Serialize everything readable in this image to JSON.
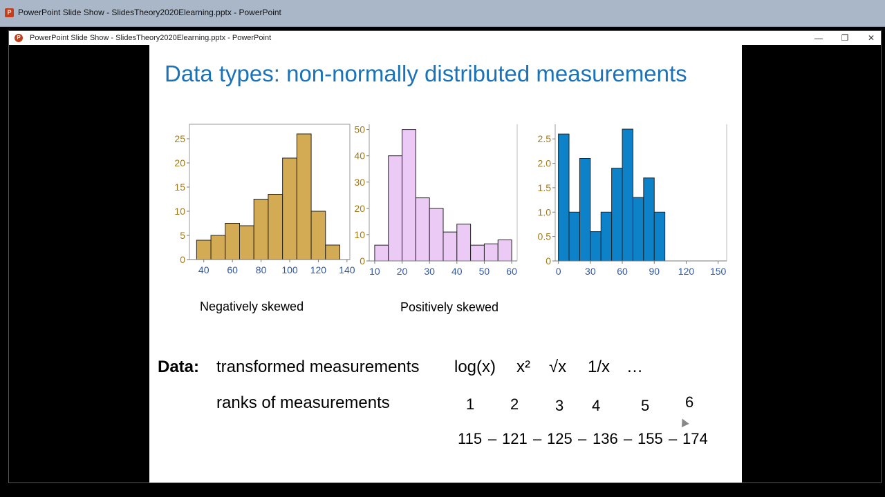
{
  "outer_window": {
    "title": "PowerPoint Slide Show  -  SlidesTheory2020Elearning.pptx - PowerPoint",
    "icon": "powerpoint-icon"
  },
  "inner_window": {
    "title": "PowerPoint Slide Show  -  SlidesTheory2020Elearning.pptx - PowerPoint",
    "minimize": "—",
    "restore": "❐",
    "close": "✕"
  },
  "slide": {
    "title": "Data types: non-normally distributed measurements",
    "captions": [
      "Negatively skewed",
      "Positively skewed"
    ],
    "data_label": "Data:",
    "transformed": "transformed measurements",
    "transforms": [
      "log(x)",
      "x²",
      "√x",
      "1/x",
      "…"
    ],
    "ranks_label": "ranks of measurements",
    "ranks": [
      "1",
      "2",
      "3",
      "4",
      "5",
      "6"
    ],
    "sequence": [
      "115",
      "121",
      "125",
      "136",
      "155",
      "174"
    ],
    "sep": "–"
  },
  "colors": {
    "title": "#1a73b8",
    "tick_gold": "#a27a14",
    "tick_blue": "#2e57a8"
  },
  "chart_data": [
    {
      "type": "bar",
      "bar_color": "#d4ab55",
      "bin_edges": [
        35,
        45,
        55,
        65,
        75,
        85,
        95,
        105,
        115,
        125,
        135
      ],
      "values": [
        4,
        5,
        7.5,
        7,
        12.5,
        13.5,
        21,
        26,
        10,
        3
      ],
      "xticks": [
        40,
        60,
        80,
        100,
        120,
        140
      ],
      "yticks": [
        0,
        5,
        10,
        15,
        20,
        25
      ],
      "xlim": [
        30,
        142
      ],
      "ylim": [
        0,
        28
      ]
    },
    {
      "type": "bar",
      "bar_color": "#eccaf6",
      "bin_edges": [
        10,
        15,
        20,
        25,
        30,
        35,
        40,
        45,
        50,
        55,
        60
      ],
      "values": [
        6,
        40,
        50,
        24,
        20,
        11,
        14,
        6,
        6.5,
        8
      ],
      "xticks": [
        10,
        20,
        30,
        40,
        50,
        60
      ],
      "yticks": [
        0,
        10,
        20,
        30,
        40,
        50
      ],
      "xlim": [
        8,
        62
      ],
      "ylim": [
        0,
        52
      ]
    },
    {
      "type": "bar",
      "bar_color": "#0d82c9",
      "bin_edges": [
        0,
        10,
        20,
        30,
        40,
        50,
        60,
        70,
        80,
        90,
        100
      ],
      "values": [
        2.6,
        1.0,
        2.1,
        0.6,
        1.0,
        1.9,
        2.7,
        1.3,
        1.7,
        1.0
      ],
      "xticks": [
        0,
        30,
        60,
        90,
        120,
        150
      ],
      "yticks": [
        "0",
        "0.5",
        "1.0",
        "1.5",
        "2.0",
        "2.5"
      ],
      "xlim": [
        -3,
        158
      ],
      "ylim": [
        0,
        2.8
      ]
    }
  ]
}
